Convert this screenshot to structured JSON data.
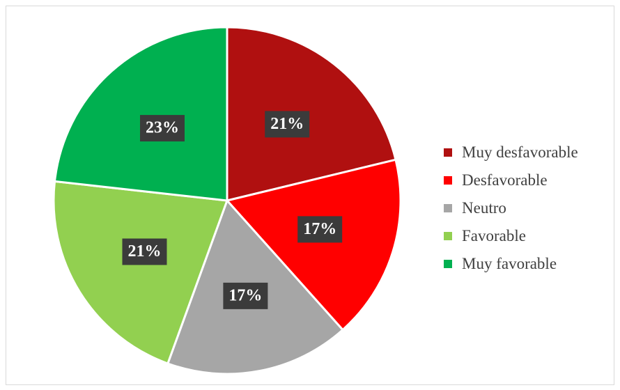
{
  "chart_data": {
    "type": "pie",
    "title": "",
    "legend_position": "right",
    "slices": [
      {
        "label": "Muy desfavorable",
        "value": 21,
        "display": "21%",
        "color": "#b01010"
      },
      {
        "label": "Desfavorable",
        "value": 17,
        "display": "17%",
        "color": "#ff0000"
      },
      {
        "label": "Neutro",
        "value": 17,
        "display": "17%",
        "color": "#a6a6a6"
      },
      {
        "label": "Favorable",
        "value": 21,
        "display": "21%",
        "color": "#92d050"
      },
      {
        "label": "Muy favorable",
        "value": 23,
        "display": "23%",
        "color": "#00b050"
      }
    ]
  }
}
